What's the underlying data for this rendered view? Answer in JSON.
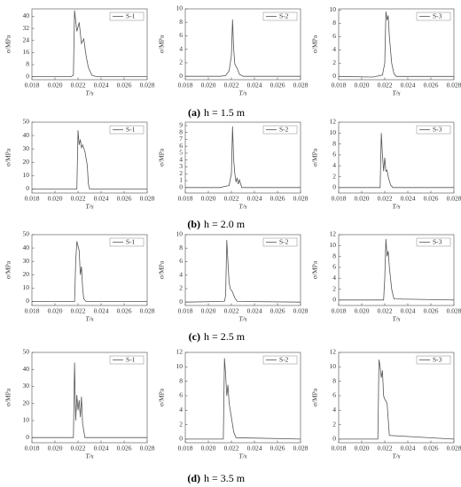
{
  "chart_data": [
    {
      "type": "line",
      "xlabel": "T/s",
      "ylabel": "σ/MPa",
      "xlim": [
        0.018,
        0.028
      ],
      "xticks": [
        0.018,
        {
          "value": 0.02,
          "label": "0.020"
        },
        0.022,
        0.024,
        0.026,
        0.028
      ],
      "ylim": [
        -2,
        45
      ],
      "yticks": [
        0,
        8,
        16,
        24,
        32,
        40
      ],
      "x": [
        0.018,
        0.0214,
        0.0216,
        0.0217,
        0.0219,
        0.0221,
        0.0223,
        0.0225,
        0.0227,
        0.0229,
        0.0232,
        0.0236,
        0.028
      ],
      "series": [
        {
          "name": "S-1",
          "color": "#555",
          "values": [
            0,
            0,
            1,
            44,
            30,
            36,
            22,
            25,
            14,
            6,
            1,
            0,
            0
          ]
        }
      ]
    },
    {
      "type": "line",
      "xlabel": "T/s",
      "ylabel": "σ/MPa",
      "xlim": [
        0.018,
        0.028
      ],
      "xticks": [
        0.018,
        {
          "value": 0.02,
          "label": "0.020"
        },
        0.022,
        0.024,
        0.026,
        0.028
      ],
      "ylim": [
        -0.5,
        10
      ],
      "yticks": [
        0,
        2,
        4,
        6,
        8,
        10
      ],
      "x": [
        0.018,
        0.021,
        0.0215,
        0.0218,
        0.022,
        0.0221,
        0.0222,
        0.0223,
        0.0225,
        0.0227,
        0.023,
        0.028
      ],
      "series": [
        {
          "name": "S-2",
          "color": "#555",
          "values": [
            0,
            0,
            0.1,
            0.8,
            3,
            8.4,
            4,
            1.8,
            1.2,
            0.3,
            0,
            0
          ]
        }
      ]
    },
    {
      "type": "line",
      "xlabel": "T/s",
      "ylabel": "σ/MPa",
      "xlim": [
        0.018,
        0.028
      ],
      "xticks": [
        0.018,
        {
          "value": 0.02,
          "label": "0.020"
        },
        0.022,
        0.024,
        0.026,
        0.028
      ],
      "ylim": [
        -0.5,
        10.2
      ],
      "yticks": [
        0,
        2,
        4,
        6,
        8,
        10
      ],
      "x": [
        0.018,
        0.021,
        0.0218,
        0.022,
        0.0221,
        0.0222,
        0.0223,
        0.0224,
        0.0226,
        0.0228,
        0.023,
        0.028
      ],
      "series": [
        {
          "name": "S-3",
          "color": "#555",
          "values": [
            0,
            -0.1,
            0.2,
            2,
            9.8,
            8.5,
            9.2,
            6,
            2,
            0.4,
            0,
            0
          ]
        }
      ]
    },
    {
      "type": "line",
      "xlabel": "T/s",
      "ylabel": "σ/MPa",
      "xlim": [
        0.018,
        0.028
      ],
      "xticks": [
        0.018,
        {
          "value": 0.02,
          "label": "0.020"
        },
        0.022,
        0.024,
        0.026,
        0.028
      ],
      "ylim": [
        -3,
        50
      ],
      "yticks": [
        0,
        10,
        20,
        30,
        40,
        50
      ],
      "x": [
        0.018,
        0.0219,
        0.022,
        0.0221,
        0.0222,
        0.0223,
        0.0224,
        0.0226,
        0.0228,
        0.0229,
        0.023,
        0.028
      ],
      "series": [
        {
          "name": "S-1",
          "color": "#555",
          "values": [
            0,
            0,
            44,
            33,
            37,
            31,
            33,
            28,
            18,
            4,
            0,
            0
          ]
        }
      ]
    },
    {
      "type": "line",
      "xlabel": "T/s",
      "ylabel": "σ/MPa",
      "xlim": [
        0.018,
        0.028
      ],
      "xticks": [
        0.018,
        {
          "value": 0.02,
          "label": "0.020"
        },
        0.022,
        0.024,
        0.026,
        0.028
      ],
      "ylim": [
        -0.8,
        9.5
      ],
      "yticks": [
        0,
        1,
        2,
        3,
        4,
        5,
        6,
        7,
        8,
        9
      ],
      "x": [
        0.018,
        0.021,
        0.0218,
        0.022,
        0.0221,
        0.0222,
        0.0223,
        0.0224,
        0.0225,
        0.0226,
        0.0227,
        0.0229,
        0.028
      ],
      "series": [
        {
          "name": "S-2",
          "color": "#555",
          "values": [
            0,
            0,
            0.3,
            2,
            8.9,
            4,
            2,
            0.8,
            1.4,
            0.5,
            1.1,
            0,
            0
          ]
        }
      ]
    },
    {
      "type": "line",
      "xlabel": "T/s",
      "ylabel": "σ/MPa",
      "xlim": [
        0.018,
        0.028
      ],
      "xticks": [
        0.018,
        {
          "value": 0.02,
          "label": "0.020"
        },
        0.022,
        0.024,
        0.026,
        0.028
      ],
      "ylim": [
        -1,
        12
      ],
      "yticks": [
        0,
        2,
        4,
        6,
        8,
        10,
        12
      ],
      "x": [
        0.018,
        0.0216,
        0.0217,
        0.0218,
        0.0219,
        0.022,
        0.0221,
        0.0222,
        0.0223,
        0.0225,
        0.0227,
        0.028
      ],
      "series": [
        {
          "name": "S-3",
          "color": "#555",
          "values": [
            0,
            0,
            10,
            6,
            3,
            5.5,
            3,
            3.2,
            2,
            0.5,
            0,
            0
          ]
        }
      ]
    },
    {
      "type": "line",
      "xlabel": "T/s",
      "ylabel": "σ/MPa",
      "xlim": [
        0.018,
        0.028
      ],
      "xticks": [
        0.018,
        {
          "value": 0.02,
          "label": "0.020"
        },
        0.022,
        0.024,
        0.026,
        0.028
      ],
      "ylim": [
        -3,
        50
      ],
      "yticks": [
        0,
        10,
        20,
        30,
        40,
        50
      ],
      "x": [
        0.018,
        0.0217,
        0.0218,
        0.0219,
        0.0221,
        0.0222,
        0.0223,
        0.0224,
        0.0225,
        0.0227,
        0.028
      ],
      "series": [
        {
          "name": "S-1",
          "color": "#555",
          "values": [
            0,
            0,
            30,
            45,
            38,
            20,
            26,
            10,
            2,
            0,
            0
          ]
        }
      ]
    },
    {
      "type": "line",
      "xlabel": "T/s",
      "ylabel": "σ/MPa",
      "xlim": [
        0.018,
        0.028
      ],
      "xticks": [
        0.018,
        {
          "value": 0.02,
          "label": "0.020"
        },
        0.022,
        0.024,
        0.026,
        0.028
      ],
      "ylim": [
        -0.5,
        10
      ],
      "yticks": [
        0,
        2,
        4,
        6,
        8,
        10
      ],
      "x": [
        0.018,
        0.0214,
        0.0215,
        0.0216,
        0.0217,
        0.0218,
        0.0219,
        0.0221,
        0.0223,
        0.0225,
        0.028
      ],
      "series": [
        {
          "name": "S-2",
          "color": "#555",
          "values": [
            0,
            0.1,
            1,
            9.2,
            6,
            3,
            2,
            1.5,
            0.6,
            0.1,
            0
          ]
        }
      ]
    },
    {
      "type": "line",
      "xlabel": "T/s",
      "ylabel": "σ/MPa",
      "xlim": [
        0.018,
        0.028
      ],
      "xticks": [
        0.018,
        {
          "value": 0.02,
          "label": "0.020"
        },
        0.022,
        0.024,
        0.026,
        0.028
      ],
      "ylim": [
        -1,
        12
      ],
      "yticks": [
        0,
        2,
        4,
        6,
        8,
        10,
        12
      ],
      "x": [
        0.018,
        0.0219,
        0.022,
        0.0221,
        0.0222,
        0.0223,
        0.0224,
        0.0226,
        0.0228,
        0.028
      ],
      "series": [
        {
          "name": "S-3",
          "color": "#555",
          "values": [
            0,
            0,
            4,
            11.2,
            8,
            9,
            6,
            2,
            0.2,
            0
          ]
        }
      ]
    },
    {
      "type": "line",
      "xlabel": "T/s",
      "ylabel": "σ/MPa",
      "xlim": [
        0.018,
        0.028
      ],
      "xticks": [
        0.018,
        {
          "value": 0.02,
          "label": "0.020"
        },
        0.022,
        0.024,
        0.026,
        0.028
      ],
      "ylim": [
        -3,
        50
      ],
      "yticks": [
        0,
        10,
        20,
        30,
        40,
        50
      ],
      "x": [
        0.018,
        0.0216,
        0.0217,
        0.0218,
        0.0219,
        0.022,
        0.0221,
        0.0222,
        0.0223,
        0.0224,
        0.0226,
        0.028
      ],
      "series": [
        {
          "name": "S-1",
          "color": "#555",
          "values": [
            0,
            0,
            44,
            10,
            25,
            16,
            22,
            12,
            24,
            8,
            0,
            0
          ]
        }
      ]
    },
    {
      "type": "line",
      "xlabel": "T/s",
      "ylabel": "σ/MPa",
      "xlim": [
        0.018,
        0.028
      ],
      "xticks": [
        0.018,
        {
          "value": 0.02,
          "label": "0.020"
        },
        0.022,
        0.024,
        0.026,
        0.028
      ],
      "ylim": [
        -0.5,
        12
      ],
      "yticks": [
        0,
        2,
        4,
        6,
        8,
        10,
        12
      ],
      "x": [
        0.018,
        0.0213,
        0.0214,
        0.0215,
        0.0216,
        0.0217,
        0.0218,
        0.022,
        0.0222,
        0.0224,
        0.028
      ],
      "series": [
        {
          "name": "S-2",
          "color": "#555",
          "values": [
            0,
            0,
            11.2,
            9,
            6,
            7.5,
            5,
            3,
            1,
            0.2,
            0
          ]
        }
      ]
    },
    {
      "type": "line",
      "xlabel": "T/s",
      "ylabel": "σ/MPa",
      "xlim": [
        0.018,
        0.028
      ],
      "xticks": [
        0.018,
        {
          "value": 0.02,
          "label": "0.020"
        },
        0.022,
        0.024,
        0.026,
        0.028
      ],
      "ylim": [
        -0.5,
        12
      ],
      "yticks": [
        0,
        2,
        4,
        6,
        8,
        10,
        12
      ],
      "x": [
        0.018,
        0.0214,
        0.0215,
        0.0216,
        0.0217,
        0.0218,
        0.0219,
        0.022,
        0.0222,
        0.0224,
        0.028
      ],
      "series": [
        {
          "name": "S-3",
          "color": "#555",
          "values": [
            0,
            0,
            11,
            10,
            8.5,
            9.5,
            6,
            5.5,
            5,
            0.5,
            0
          ]
        }
      ]
    }
  ],
  "captions": [
    {
      "label": "(a)",
      "text": "h = 1.5 m"
    },
    {
      "label": "(b)",
      "text": "h = 2.0 m"
    },
    {
      "label": "(c)",
      "text": "h = 2.5 m"
    },
    {
      "label": "(d)",
      "text": "h = 3.5 m"
    }
  ]
}
